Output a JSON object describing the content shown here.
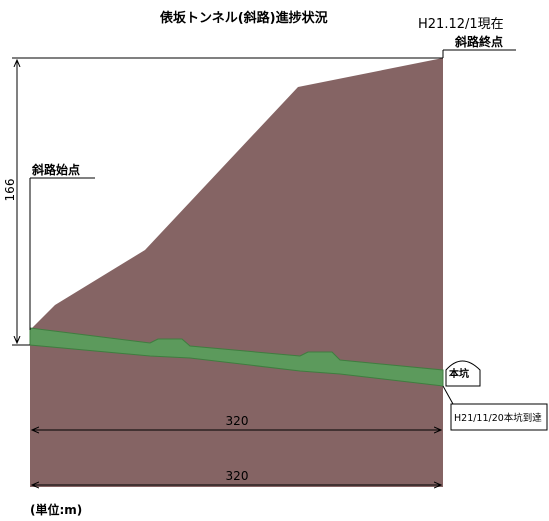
{
  "title": "俵坂トンネル(斜路)進捗状況",
  "status_date": "H21.12/1現在",
  "end_point": "斜路終点",
  "start_point": "斜路始点",
  "height_dimension": 166,
  "length_dimension_upper": 320,
  "length_dimension_lower": 320,
  "main_tunnel": "本坑",
  "arrival_note": "H21/11/20本坑到達",
  "unit_note": "(単位:m)"
}
